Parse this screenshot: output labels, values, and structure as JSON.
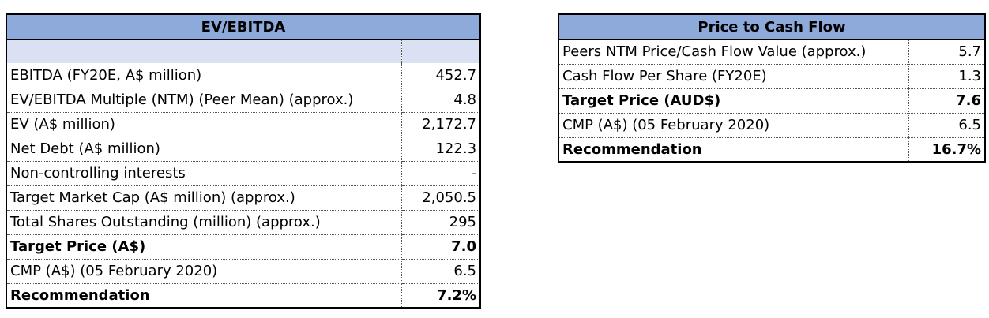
{
  "ev_ebitda": {
    "title": "EV/EBITDA",
    "rows": [
      {
        "label": "EBITDA (FY20E, A$ million)",
        "value": "452.7",
        "bold": false
      },
      {
        "label": "EV/EBITDA Multiple (NTM) (Peer Mean) (approx.)",
        "value": "4.8",
        "bold": false
      },
      {
        "label": "EV (A$ million)",
        "value": "2,172.7",
        "bold": false
      },
      {
        "label": "Net Debt (A$ million)",
        "value": "122.3",
        "bold": false
      },
      {
        "label": "Non-controlling interests",
        "value": "-",
        "bold": false
      },
      {
        "label": "Target Market Cap (A$ million) (approx.)",
        "value": "2,050.5",
        "bold": false
      },
      {
        "label": "Total Shares Outstanding (million) (approx.)",
        "value": "295",
        "bold": false
      },
      {
        "label": "Target Price (A$)",
        "value": "7.0",
        "bold": true
      },
      {
        "label": "CMP (A$) (05 February 2020)",
        "value": "6.5",
        "bold": false
      },
      {
        "label": "Recommendation",
        "value": "7.2%",
        "bold": true
      }
    ]
  },
  "price_to_cash_flow": {
    "title": "Price to Cash Flow",
    "rows": [
      {
        "label": "Peers NTM Price/Cash Flow Value (approx.)",
        "value": "5.7",
        "bold": false
      },
      {
        "label": "Cash Flow Per Share (FY20E)",
        "value": "1.3",
        "bold": false
      },
      {
        "label": "Target Price (AUD$)",
        "value": "7.6",
        "bold": true
      },
      {
        "label": "CMP (A$) (05 February 2020)",
        "value": "6.5",
        "bold": false
      },
      {
        "label": "Recommendation",
        "value": "16.7%",
        "bold": true
      }
    ]
  },
  "colors": {
    "header": "#8eaadb",
    "blank_row": "#d9e1f2"
  }
}
